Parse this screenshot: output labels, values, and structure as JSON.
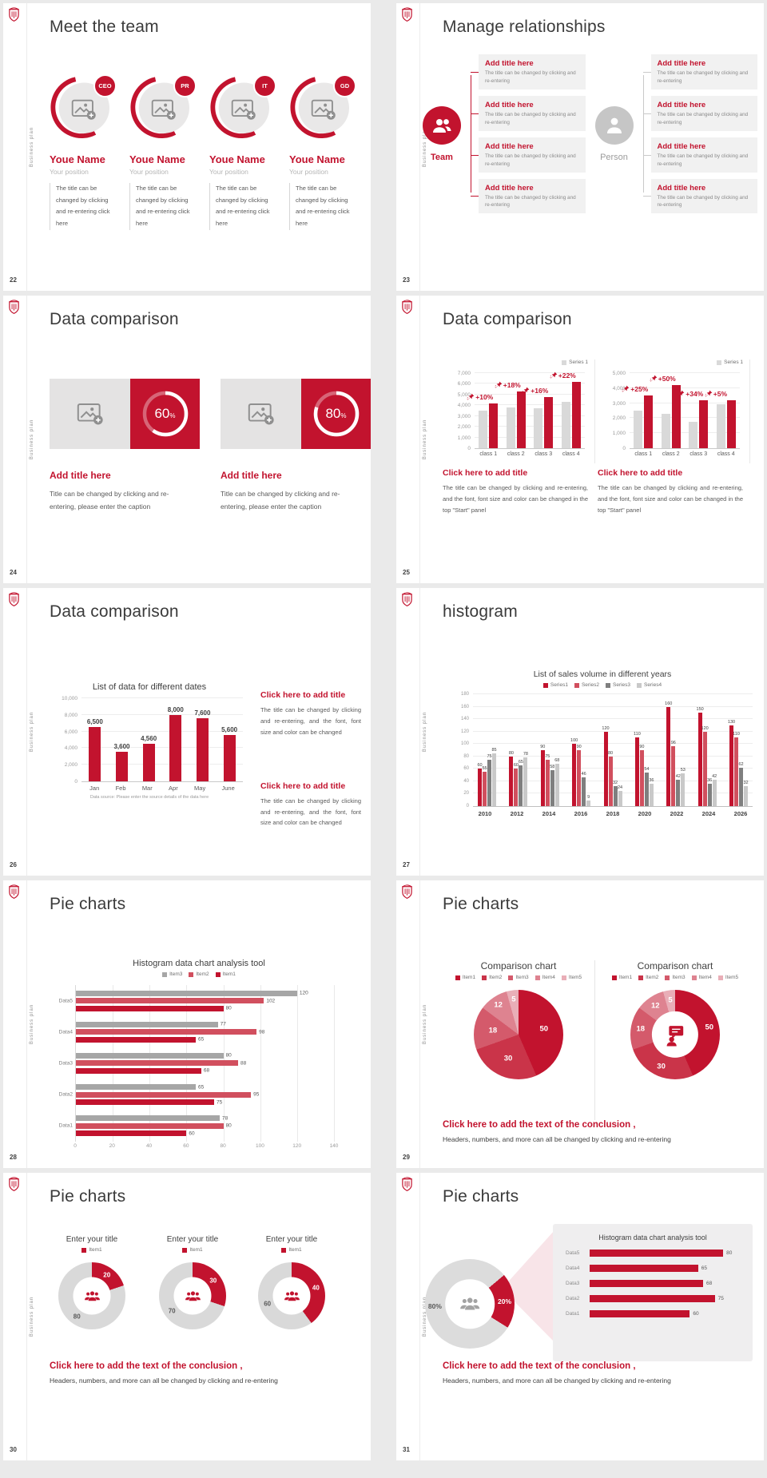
{
  "page": {
    "background": "#eaeaea"
  },
  "common": {
    "vertical_label": "Business plan",
    "brand_color": "#c2132e",
    "logo": "shield-icon"
  },
  "slides": {
    "s22": {
      "page_number": "22",
      "title": "Meet the team",
      "members": [
        {
          "badge": "CEO",
          "name": "Youe Name",
          "position": "Your position",
          "body": "The title can be changed by clicking and re-entering click here"
        },
        {
          "badge": "PR",
          "name": "Youe Name",
          "position": "Your position",
          "body": "The title can be changed by clicking and re-entering click here"
        },
        {
          "badge": "IT",
          "name": "Youe Name",
          "position": "Your position",
          "body": "The title can be changed by clicking and re-entering click here"
        },
        {
          "badge": "GD",
          "name": "Youe Name",
          "position": "Your position",
          "body": "The title can be changed by clicking and re-entering click here"
        }
      ]
    },
    "s23": {
      "page_number": "23",
      "title": "Manage relationships",
      "team_label": "Team",
      "person_label": "Person",
      "team_boxes": [
        {
          "title": "Add title here",
          "body": "The title can be changed by clicking and re-entering"
        },
        {
          "title": "Add title here",
          "body": "The title can be changed by clicking and re-entering"
        },
        {
          "title": "Add title here",
          "body": "The title can be changed by clicking and re-entering"
        },
        {
          "title": "Add title here",
          "body": "The title can be changed by clicking and re-entering"
        }
      ],
      "person_boxes": [
        {
          "title": "Add title here",
          "body": "The title can be changed by clicking and re-entering"
        },
        {
          "title": "Add title here",
          "body": "The title can be changed by clicking and re-entering"
        },
        {
          "title": "Add title here",
          "body": "The title can be changed by clicking and re-entering"
        },
        {
          "title": "Add title here",
          "body": "The title can be changed by clicking and re-entering"
        }
      ]
    },
    "s24": {
      "page_number": "24",
      "title": "Data comparison",
      "cards": [
        {
          "percent": 60,
          "percent_label": "60",
          "title": "Add title here",
          "body": "Title can be changed by clicking and re-entering, please enter the caption"
        },
        {
          "percent": 80,
          "percent_label": "80",
          "title": "Add title here",
          "body": "Title can be changed by clicking and re-entering, please enter the caption"
        }
      ]
    },
    "s25": {
      "page_number": "25",
      "title": "Data comparison",
      "blocks": [
        {
          "heading": "Click here to add title",
          "body": "The title can be changed by clicking and re-entering, and the font, font size and color can be changed in the top \"Start\" panel"
        },
        {
          "heading": "Click here to add title",
          "body": "The title can be changed by clicking and re-entering, and the font, font size and color can be changed in the top \"Start\" panel"
        }
      ]
    },
    "s26": {
      "page_number": "26",
      "title": "Data comparison",
      "blocks": [
        {
          "heading": "Click here to add title",
          "body": "The title can be changed by clicking and re-entering, and the font, font size and color can be changed"
        },
        {
          "heading": "Click here to add title",
          "body": "The title can be changed by clicking and re-entering, and the font, font size and color can be changed"
        }
      ]
    },
    "s27": {
      "page_number": "27",
      "title": "histogram"
    },
    "s28": {
      "page_number": "28",
      "title": "Pie charts"
    },
    "s29": {
      "page_number": "29",
      "title": "Pie charts",
      "conclusion_heading": "Click here to add the text of the conclusion ,",
      "conclusion_body": "Headers, numbers, and more can all be changed by clicking and re-entering"
    },
    "s30": {
      "page_number": "30",
      "title": "Pie charts",
      "conclusion_heading": "Click here to add the text of the conclusion ,",
      "conclusion_body": "Headers, numbers, and more can all be changed by clicking and re-entering"
    },
    "s31": {
      "page_number": "31",
      "title": "Pie charts",
      "conclusion_heading": "Click here to add the text of the conclusion ,",
      "conclusion_body": "Headers, numbers, and more can all be changed by clicking and re-entering"
    }
  },
  "chart_data": [
    {
      "id": "s25-left",
      "slide": "25",
      "type": "bar",
      "legend": [
        "Series 1"
      ],
      "legend_swatch_color": "#d9d9d9",
      "categories": [
        "class 1",
        "class 2",
        "class 3",
        "class 4"
      ],
      "series": [
        {
          "name": "baseline",
          "color": "#d9d9d9",
          "values": [
            3500,
            3800,
            3700,
            4300
          ]
        },
        {
          "name": "Series 1",
          "color": "#c2132e",
          "values": [
            4200,
            5300,
            4800,
            6200
          ]
        }
      ],
      "growth_labels": [
        "+10%",
        "+18%",
        "+16%",
        "+22%"
      ],
      "ylim": [
        0,
        7000
      ],
      "ystep": 1000
    },
    {
      "id": "s25-right",
      "slide": "25",
      "type": "bar",
      "legend": [
        "Series 1"
      ],
      "legend_swatch_color": "#d9d9d9",
      "categories": [
        "class 1",
        "class 2",
        "class 3",
        "class 4"
      ],
      "series": [
        {
          "name": "baseline",
          "color": "#d9d9d9",
          "values": [
            2500,
            2300,
            1750,
            2900
          ]
        },
        {
          "name": "Series 1",
          "color": "#c2132e",
          "values": [
            3500,
            4200,
            3200,
            3200
          ]
        }
      ],
      "growth_labels": [
        "+25%",
        "+50%",
        "+34%",
        "+5%"
      ],
      "ylim": [
        0,
        5000
      ],
      "ystep": 1000
    },
    {
      "id": "s26",
      "slide": "26",
      "type": "bar",
      "title": "List of data for different dates",
      "categories": [
        "Jan",
        "Feb",
        "Mar",
        "Apr",
        "May",
        "June"
      ],
      "series": [
        {
          "name": "data",
          "color": "#c2132e",
          "values": [
            6500,
            3600,
            4560,
            8000,
            7600,
            5600
          ]
        }
      ],
      "data_labels": [
        "6,500",
        "3,600",
        "4,560",
        "8,000",
        "7,600",
        "5,600"
      ],
      "ylim": [
        0,
        10000
      ],
      "ystep": 2000,
      "footnote": "Data source: Please enter the source details of the data here"
    },
    {
      "id": "s27",
      "slide": "27",
      "type": "bar",
      "title": "List of sales volume in different years",
      "categories": [
        "2010",
        "2012",
        "2014",
        "2016",
        "2018",
        "2020",
        "2022",
        "2024",
        "2026"
      ],
      "series": [
        {
          "name": "Series1",
          "color": "#c2132e",
          "values": [
            60,
            80,
            90,
            100,
            120,
            110,
            160,
            150,
            130
          ]
        },
        {
          "name": "Series2",
          "color": "#d14f5e",
          "values": [
            55,
            60,
            75,
            90,
            80,
            90,
            96,
            120,
            110
          ]
        },
        {
          "name": "Series3",
          "color": "#7f7f7f",
          "values": [
            75,
            65,
            58,
            46,
            32,
            54,
            42,
            36,
            62
          ]
        },
        {
          "name": "Series4",
          "color": "#c9c9c9",
          "values": [
            85,
            78,
            68,
            9,
            24,
            36,
            53,
            42,
            32
          ]
        }
      ],
      "ylim": [
        0,
        180
      ],
      "ystep": 20
    },
    {
      "id": "s28",
      "slide": "28",
      "type": "bar-horizontal",
      "title": "Histogram data chart analysis tool",
      "categories": [
        "Data5",
        "Data4",
        "Data3",
        "Data2",
        "Data1"
      ],
      "series": [
        {
          "name": "Item3",
          "color": "#a6a6a6",
          "values": [
            120,
            77,
            80,
            65,
            78
          ]
        },
        {
          "name": "Item2",
          "color": "#d14f5e",
          "values": [
            102,
            98,
            88,
            95,
            80
          ]
        },
        {
          "name": "Item1",
          "color": "#c2132e",
          "values": [
            80,
            65,
            68,
            75,
            60
          ]
        }
      ],
      "xlim": [
        0,
        140
      ],
      "xstep": 20
    },
    {
      "id": "s29-pie",
      "slide": "29",
      "type": "pie",
      "title": "Comparison chart",
      "legend": [
        "Item1",
        "Item2",
        "Item3",
        "Item4",
        "Item5"
      ],
      "values": [
        50,
        30,
        18,
        12,
        5
      ],
      "colors": [
        "#c2132e",
        "#ca3449",
        "#d45a6b",
        "#de8390",
        "#e9aeb7"
      ]
    },
    {
      "id": "s29-donut",
      "slide": "29",
      "type": "donut",
      "title": "Comparison chart",
      "legend": [
        "Item1",
        "Item2",
        "Item3",
        "Item4",
        "Item5"
      ],
      "values": [
        50,
        30,
        18,
        12,
        5
      ],
      "colors": [
        "#c2132e",
        "#ca3449",
        "#d45a6b",
        "#de8390",
        "#e9aeb7"
      ],
      "center_icon": "person-chat-icon"
    },
    {
      "id": "s30-1",
      "slide": "30",
      "type": "donut",
      "title": "Enter your title",
      "legend": [
        "Item1"
      ],
      "values": [
        20,
        80
      ],
      "labels": [
        "20",
        "80"
      ],
      "colors": [
        "#c2132e",
        "#d9d9d9"
      ],
      "center_icon": "people-group-icon"
    },
    {
      "id": "s30-2",
      "slide": "30",
      "type": "donut",
      "title": "Enter your title",
      "legend": [
        "Item1"
      ],
      "values": [
        30,
        70
      ],
      "labels": [
        "30",
        "70"
      ],
      "colors": [
        "#c2132e",
        "#d9d9d9"
      ],
      "center_icon": "people-group-icon"
    },
    {
      "id": "s30-3",
      "slide": "30",
      "type": "donut",
      "title": "Enter your title",
      "legend": [
        "Item1"
      ],
      "values": [
        40,
        60
      ],
      "labels": [
        "40",
        "60"
      ],
      "colors": [
        "#c2132e",
        "#d9d9d9"
      ],
      "center_icon": "people-group-icon"
    },
    {
      "id": "s31-donut",
      "slide": "31",
      "type": "donut",
      "values": [
        20,
        80
      ],
      "labels": [
        "20%",
        "80%"
      ],
      "colors": [
        "#c2132e",
        "#dcdcdc"
      ],
      "center_icon": "people-group-icon",
      "start_angle": 50
    },
    {
      "id": "s31-bars",
      "slide": "31",
      "type": "bar-horizontal",
      "title": "Histogram data chart analysis tool",
      "categories": [
        "Data5",
        "Data4",
        "Data3",
        "Data2",
        "Data1"
      ],
      "values": [
        80,
        65,
        68,
        75,
        60
      ],
      "color": "#c2132e",
      "xmax": 90
    }
  ]
}
